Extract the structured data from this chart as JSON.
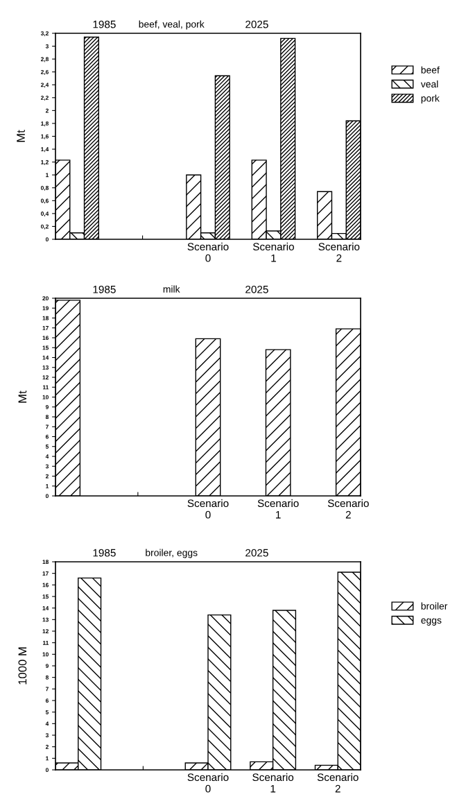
{
  "chart_data": [
    {
      "type": "bar",
      "title": "beef, veal, pork",
      "ylabel": "Mt",
      "annotations": [
        "1985",
        "2025"
      ],
      "categories": [
        null,
        null,
        "Scenario\n0",
        "Scenario\n1",
        "Scenario\n2"
      ],
      "series": [
        {
          "name": "beef",
          "color": "#000000",
          "values": [
            1.23,
            null,
            1.0,
            1.23,
            0.74
          ]
        },
        {
          "name": "veal",
          "color": "#000000",
          "values": [
            0.1,
            null,
            0.1,
            0.13,
            0.09
          ]
        },
        {
          "name": "pork",
          "color": "#000000",
          "values": [
            3.14,
            null,
            2.54,
            3.12,
            1.84
          ]
        }
      ],
      "ylim": [
        0,
        3.2
      ],
      "yticks": [
        0,
        {
          "value": 0.2,
          "label": "0,2"
        },
        {
          "value": 0.4,
          "label": "0,4"
        },
        {
          "value": 0.6,
          "label": "0,6"
        },
        {
          "value": 0.8,
          "label": "0,8"
        },
        1,
        {
          "value": 1.2,
          "label": "1,2"
        },
        {
          "value": 1.4,
          "label": "1,4"
        },
        {
          "value": 1.6,
          "label": "1,6"
        },
        {
          "value": 1.8,
          "label": "1,8"
        },
        2,
        {
          "value": 2.2,
          "label": "2,2"
        },
        {
          "value": 2.4,
          "label": "2,4"
        },
        {
          "value": 2.6,
          "label": "2,6"
        },
        {
          "value": 2.8,
          "label": "2,8"
        },
        3,
        {
          "value": 3.2,
          "label": "3,2"
        }
      ],
      "legend": "right"
    },
    {
      "type": "bar",
      "title": "milk",
      "ylabel": "Mt",
      "annotations": [
        "1985",
        "2025"
      ],
      "categories": [
        null,
        null,
        "Scenario\n0",
        "Scenario\n1",
        "Scenario\n2"
      ],
      "color": "#000000",
      "values": [
        19.8,
        null,
        15.9,
        14.8,
        16.9
      ],
      "ylim": [
        0,
        20
      ],
      "yticks": [
        0,
        1,
        2,
        3,
        4,
        5,
        6,
        7,
        8,
        9,
        10,
        11,
        12,
        13,
        14,
        15,
        16,
        17,
        18,
        19,
        20
      ]
    },
    {
      "type": "bar",
      "title": "broiler, eggs",
      "ylabel": "1000 M",
      "annotations": [
        "1985",
        "2025"
      ],
      "categories": [
        null,
        null,
        "Scenario\n0",
        "Scenario\n1",
        "Scenario\n2"
      ],
      "series": [
        {
          "name": "broiler",
          "color": "#000000",
          "values": [
            0.6,
            null,
            0.6,
            0.7,
            0.4
          ]
        },
        {
          "name": "eggs",
          "color": "#000000",
          "values": [
            16.6,
            null,
            13.4,
            13.8,
            17.1
          ]
        }
      ],
      "ylim": [
        0,
        18
      ],
      "yticks": [
        0,
        1,
        2,
        3,
        4,
        5,
        6,
        7,
        8,
        9,
        10,
        11,
        12,
        13,
        14,
        15,
        16,
        17,
        18
      ],
      "legend": "right"
    }
  ]
}
